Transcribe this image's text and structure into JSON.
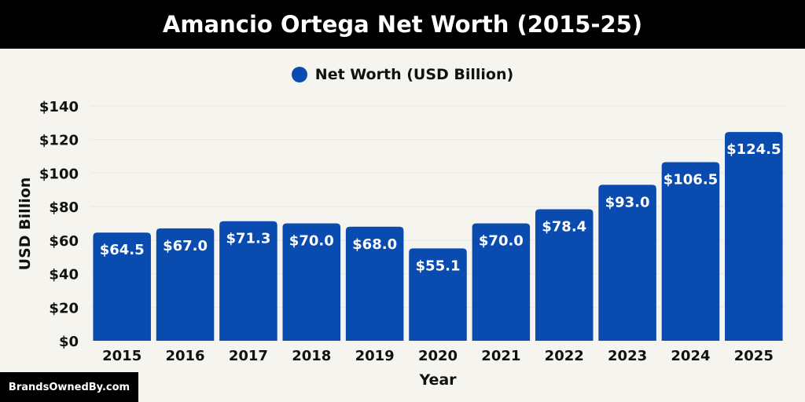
{
  "chart_data": {
    "type": "bar",
    "title": "Amancio Ortega Net Worth (2015-25)",
    "xlabel": "Year",
    "ylabel": "USD Billion",
    "legend": [
      "Net Worth (USD Billion)"
    ],
    "legend_position": "top-center",
    "categories": [
      "2015",
      "2016",
      "2017",
      "2018",
      "2019",
      "2020",
      "2021",
      "2022",
      "2023",
      "2024",
      "2025"
    ],
    "series": [
      {
        "name": "Net Worth (USD Billion)",
        "values": [
          64.5,
          67.0,
          71.3,
          70.0,
          68.0,
          55.1,
          70.0,
          78.4,
          93.0,
          106.5,
          124.5
        ],
        "labels": [
          "$64.5",
          "$67.0",
          "$71.3",
          "$70.0",
          "$68.0",
          "$55.1",
          "$70.0",
          "$78.4",
          "$93.0",
          "$106.5",
          "$124.5"
        ]
      }
    ],
    "ylim": [
      0,
      140
    ],
    "yticks": [
      0,
      20,
      40,
      60,
      80,
      100,
      120,
      140
    ],
    "ytick_labels": [
      "$0",
      "$20",
      "$40",
      "$60",
      "$80",
      "$100",
      "$120",
      "$140"
    ],
    "grid": false,
    "bar_color": "#0a4bb0"
  },
  "watermark": "BrandsOwnedBy.com"
}
